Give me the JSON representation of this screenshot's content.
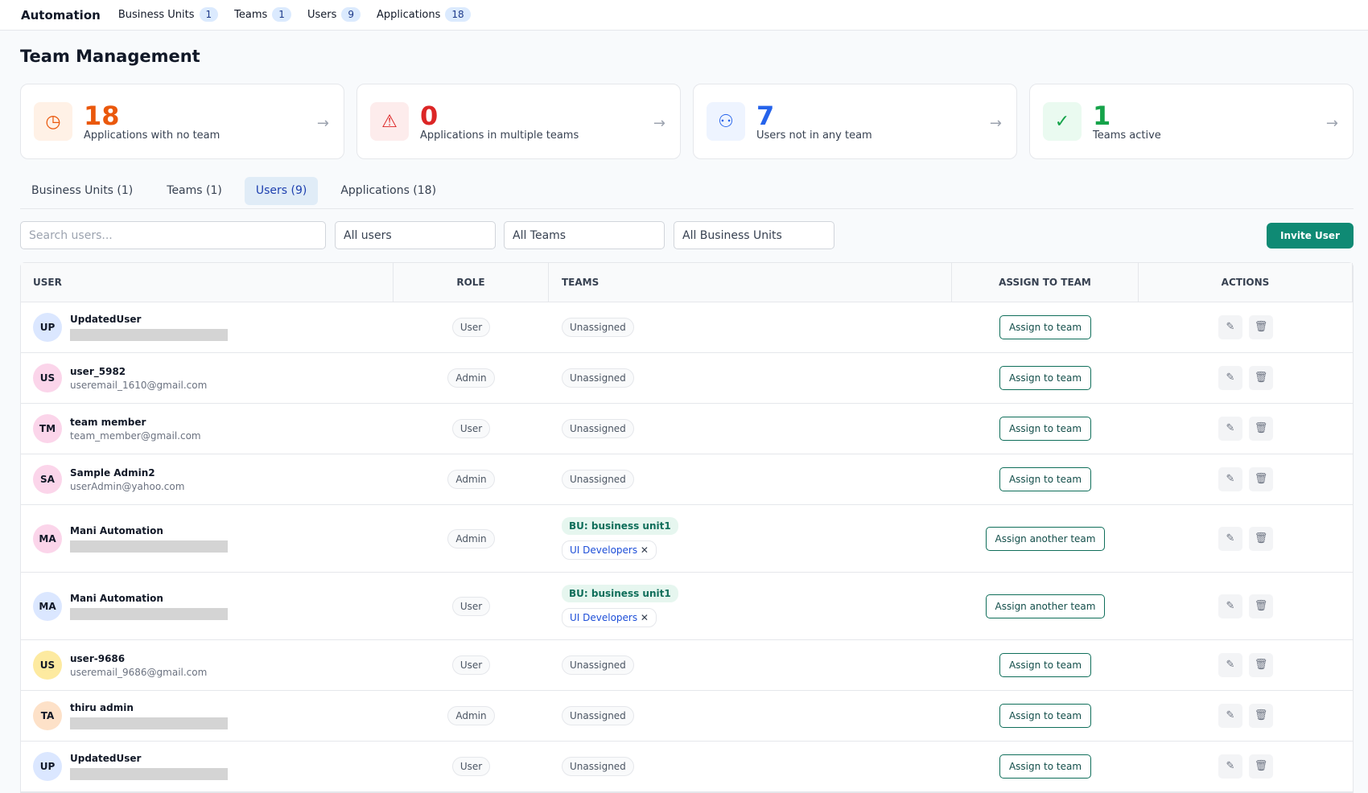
{
  "nav": {
    "brand": "Automation",
    "items": [
      {
        "label": "Business Units",
        "count": 1
      },
      {
        "label": "Teams",
        "count": 1
      },
      {
        "label": "Users",
        "count": 9
      },
      {
        "label": "Applications",
        "count": 18
      }
    ]
  },
  "page_title": "Team Management",
  "stats": [
    {
      "value": 18,
      "label": "Applications with no team"
    },
    {
      "value": 0,
      "label": "Applications in multiple teams"
    },
    {
      "value": 7,
      "label": "Users not in any team"
    },
    {
      "value": 1,
      "label": "Teams active"
    }
  ],
  "tabs": [
    "Business Units (1)",
    "Teams (1)",
    "Users (9)",
    "Applications (18)"
  ],
  "filters": {
    "search_placeholder": "Search users...",
    "selects": [
      "All users",
      "All Teams",
      "All Business Units"
    ],
    "invite": "Invite User"
  },
  "table": {
    "headers": [
      "USER",
      "ROLE",
      "TEAMS",
      "ASSIGN TO TEAM",
      "ACTIONS"
    ],
    "rows": [
      {
        "initials": "UP",
        "name": "UpdatedUser",
        "role": "User",
        "status": "Unassigned",
        "action": "Assign to team"
      },
      {
        "initials": "US",
        "name": "user_5982",
        "email": "useremail_1610@gmail.com",
        "role": "Admin",
        "status": "Unassigned",
        "action": "Assign to team"
      },
      {
        "initials": "TM",
        "name": "team member",
        "email": "team_member@gmail.com",
        "role": "User",
        "status": "Unassigned",
        "action": "Assign to team"
      },
      {
        "initials": "SA",
        "name": "Sample Admin2",
        "email": "userAdmin@yahoo.com",
        "role": "Admin",
        "status": "Unassigned",
        "action": "Assign to team"
      },
      {
        "initials": "MA",
        "name": "Mani Automation",
        "role": "Admin",
        "bu": "BU: business unit1",
        "teams": [
          "UI Developers"
        ],
        "action": "Assign another team"
      },
      {
        "initials": "MA",
        "name": "Mani Automation",
        "role": "User",
        "bu": "BU: business unit1",
        "teams": [
          "UI Developers"
        ],
        "action": "Assign another team"
      },
      {
        "initials": "US",
        "name": "user-9686",
        "email": "useremail_9686@gmail.com",
        "role": "User",
        "status": "Unassigned",
        "action": "Assign to team"
      },
      {
        "initials": "TA",
        "name": "thiru admin",
        "role": "Admin",
        "status": "Unassigned",
        "action": "Assign to team"
      },
      {
        "initials": "UP",
        "name": "UpdatedUser",
        "role": "User",
        "status": "Unassigned",
        "action": "Assign to team"
      }
    ]
  }
}
